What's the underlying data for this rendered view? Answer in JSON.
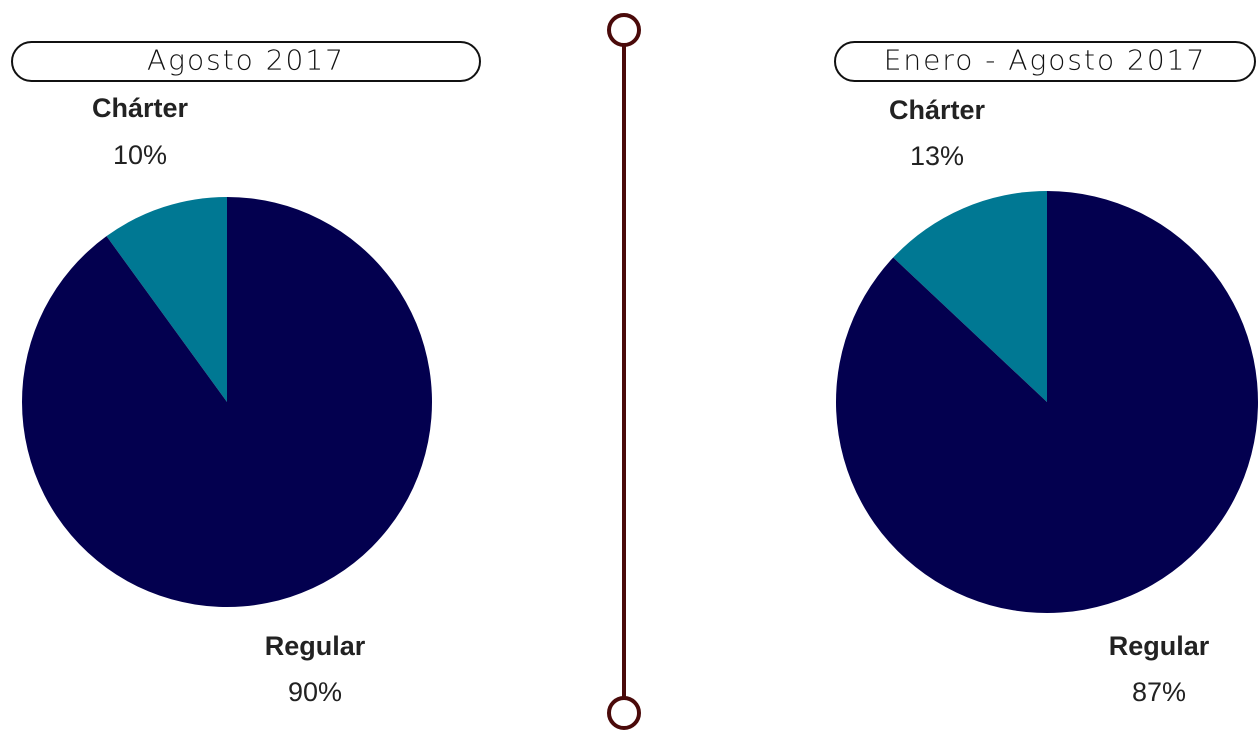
{
  "chart_data": [
    {
      "type": "pie",
      "title": "Agosto 2017",
      "categories": [
        "Chárter",
        "Regular"
      ],
      "values": [
        10,
        90
      ],
      "value_labels": [
        "10%",
        "90%"
      ],
      "colors": [
        "#007893",
        "#03004f"
      ]
    },
    {
      "type": "pie",
      "title": "Enero - Agosto 2017",
      "categories": [
        "Chárter",
        "Regular"
      ],
      "values": [
        13,
        87
      ],
      "value_labels": [
        "13%",
        "87%"
      ],
      "colors": [
        "#007893",
        "#03004f"
      ]
    }
  ]
}
